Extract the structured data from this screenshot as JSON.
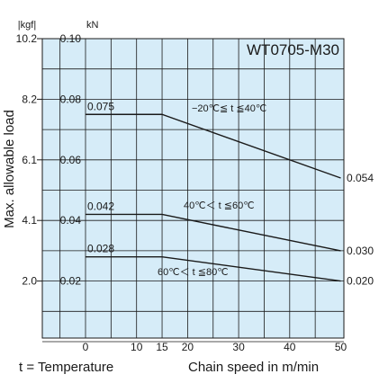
{
  "chart_data": {
    "type": "line",
    "title": "WT0705-M30",
    "ylabel": "Max. allowable load",
    "xlabel": "Chain speed in m/min",
    "y_unit_kn": "kN",
    "y_unit_kgf": "|kgf|",
    "xlim": [
      -10,
      50
    ],
    "ylim": [
      -0.01,
      0.1
    ],
    "x_ticks": [
      0,
      10,
      15,
      20,
      30,
      40,
      50
    ],
    "y_ticks_kn": [
      "0.10",
      "0.08",
      "0.06",
      "0.04",
      "0.02"
    ],
    "y_ticks_kgf": [
      "10.2",
      "8.2",
      "6.1",
      "4.1",
      "2.0"
    ],
    "y_tick_values": [
      0.1,
      0.08,
      0.06,
      0.04,
      0.02
    ],
    "series": [
      {
        "condition": "−20℃≦ t ≦40℃",
        "x": [
          0,
          15,
          50
        ],
        "y": [
          0.075,
          0.075,
          0.054
        ],
        "start_label": "0.075",
        "end_label": "0.054"
      },
      {
        "condition": "40℃＜ t ≦60℃",
        "x": [
          0,
          15,
          50
        ],
        "y": [
          0.042,
          0.042,
          0.03
        ],
        "start_label": "0.042",
        "end_label": "0.030"
      },
      {
        "condition": "60℃＜ t ≦80℃",
        "x": [
          0,
          15,
          50
        ],
        "y": [
          0.028,
          0.028,
          0.02
        ],
        "start_label": "0.028",
        "end_label": "0.020"
      }
    ],
    "grid": true,
    "background_color": "#d6ecf8",
    "line_color": "#1a1a1a"
  },
  "footer": {
    "legend_text": "t = Temperature",
    "xlabel": "Chain speed in m/min"
  }
}
